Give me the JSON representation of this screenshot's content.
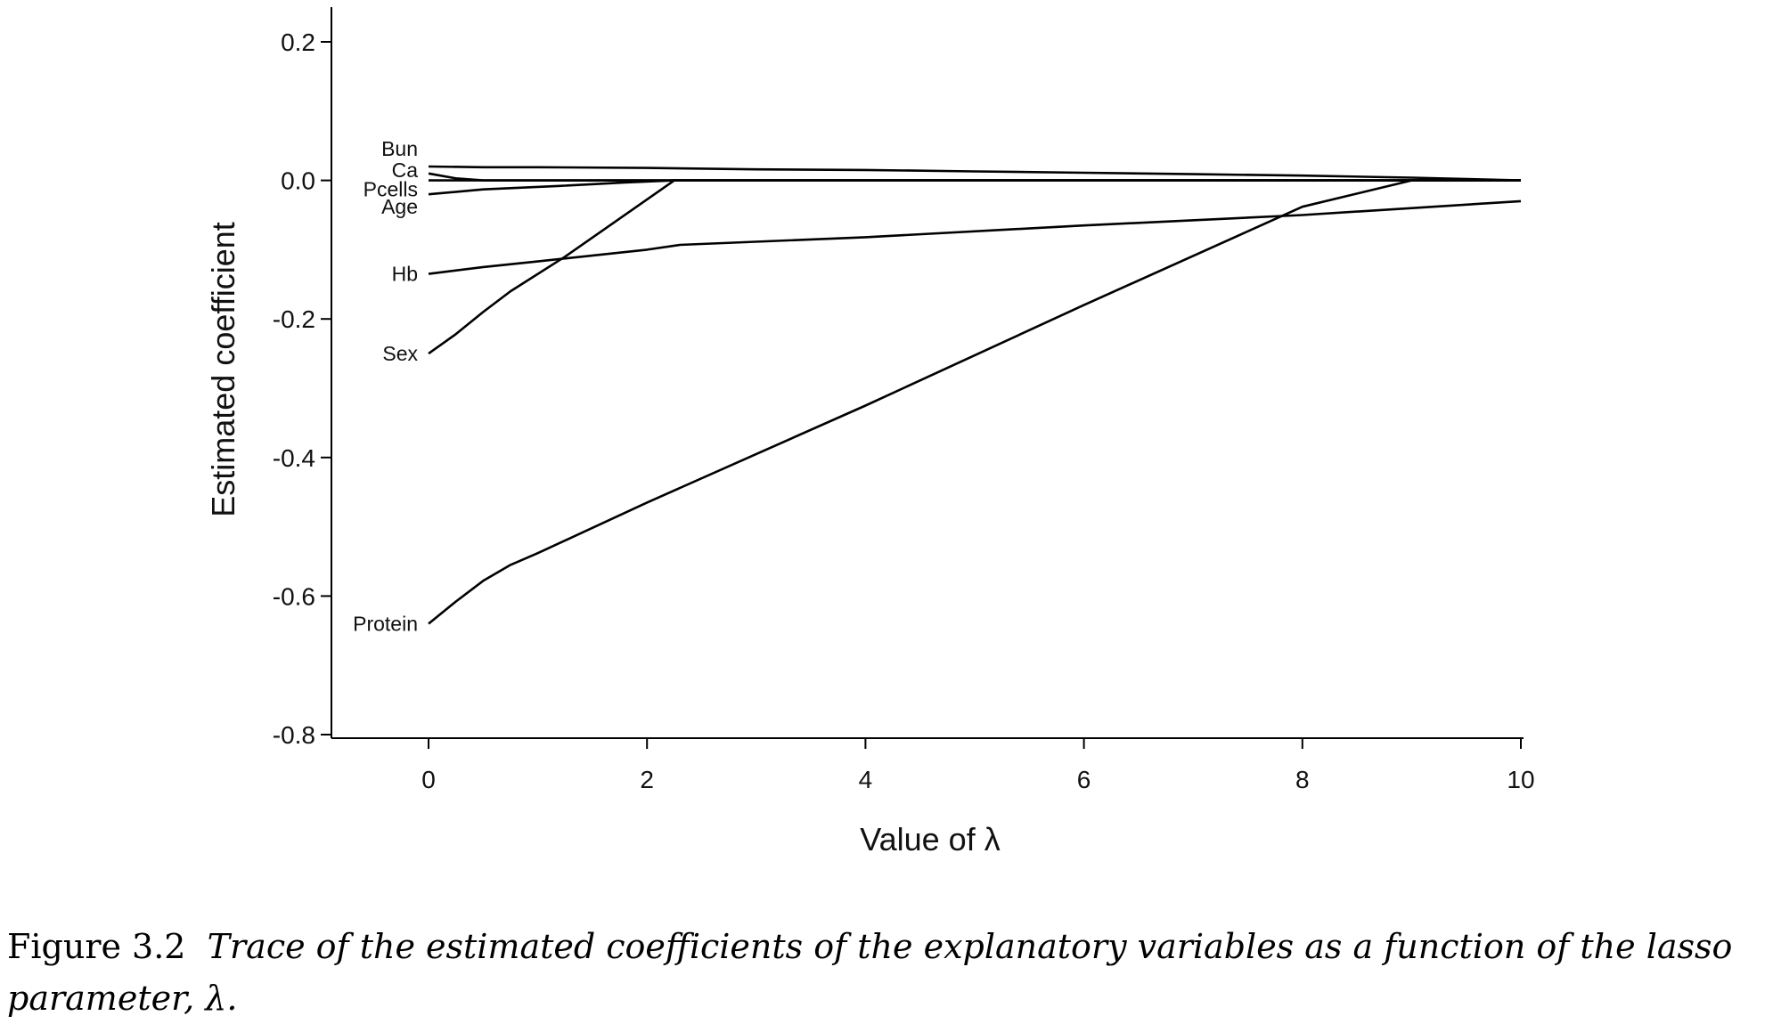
{
  "chart_data": {
    "type": "line",
    "xlabel": "Value of λ",
    "ylabel": "Estimated coefficient",
    "xlim": [
      -0.9,
      10.1
    ],
    "ylim": [
      -0.8,
      0.2
    ],
    "x_ticks": [
      0,
      2,
      4,
      6,
      8,
      10
    ],
    "x_tick_labels": [
      "0",
      "2",
      "4",
      "6",
      "8",
      "10"
    ],
    "y_ticks": [
      0.2,
      0.0,
      -0.2,
      -0.4,
      -0.6,
      -0.8
    ],
    "y_tick_labels": [
      "0.2",
      "0.0",
      "-0.2",
      "-0.4",
      "-0.6",
      "-0.8"
    ],
    "grid": false,
    "legend": "none (series labelled at left end of each line)",
    "line_color": "#000000",
    "series": [
      {
        "name": "Bun",
        "x": [
          0,
          0.5,
          1,
          2,
          3,
          4,
          5,
          6,
          7,
          8,
          9,
          10
        ],
        "y": [
          0.02,
          0.019,
          0.019,
          0.018,
          0.016,
          0.015,
          0.013,
          0.011,
          0.009,
          0.007,
          0.004,
          0.0
        ]
      },
      {
        "name": "Ca",
        "x": [
          0,
          0.25,
          0.5,
          10
        ],
        "y": [
          0.01,
          0.003,
          0.0,
          0.0
        ]
      },
      {
        "name": "Pcells",
        "x": [
          0,
          10
        ],
        "y": [
          0.0,
          0.0
        ]
      },
      {
        "name": "Age",
        "x": [
          0,
          0.5,
          1.2,
          1.8,
          2.25,
          10
        ],
        "y": [
          -0.02,
          -0.013,
          -0.008,
          -0.003,
          0.0,
          0.0
        ]
      },
      {
        "name": "Hb",
        "x": [
          0,
          0.5,
          1,
          2,
          2.3,
          4,
          6,
          8,
          10
        ],
        "y": [
          -0.135,
          -0.125,
          -0.117,
          -0.1,
          -0.093,
          -0.082,
          -0.065,
          -0.05,
          -0.03
        ]
      },
      {
        "name": "Sex",
        "x": [
          0,
          0.25,
          0.5,
          0.75,
          1.25,
          2.25,
          10
        ],
        "y": [
          -0.25,
          -0.222,
          -0.19,
          -0.16,
          -0.11,
          0.0,
          0.0
        ]
      },
      {
        "name": "Protein",
        "x": [
          0,
          0.25,
          0.5,
          0.75,
          1,
          2,
          4,
          6,
          8,
          9,
          10
        ],
        "y": [
          -0.64,
          -0.608,
          -0.578,
          -0.555,
          -0.538,
          -0.465,
          -0.325,
          -0.18,
          -0.038,
          0.0,
          0.0
        ]
      }
    ]
  },
  "caption": {
    "number": "Figure 3.2",
    "text": "Trace of the estimated coefficients of the explanatory variables as a function of the lasso parameter, λ."
  }
}
